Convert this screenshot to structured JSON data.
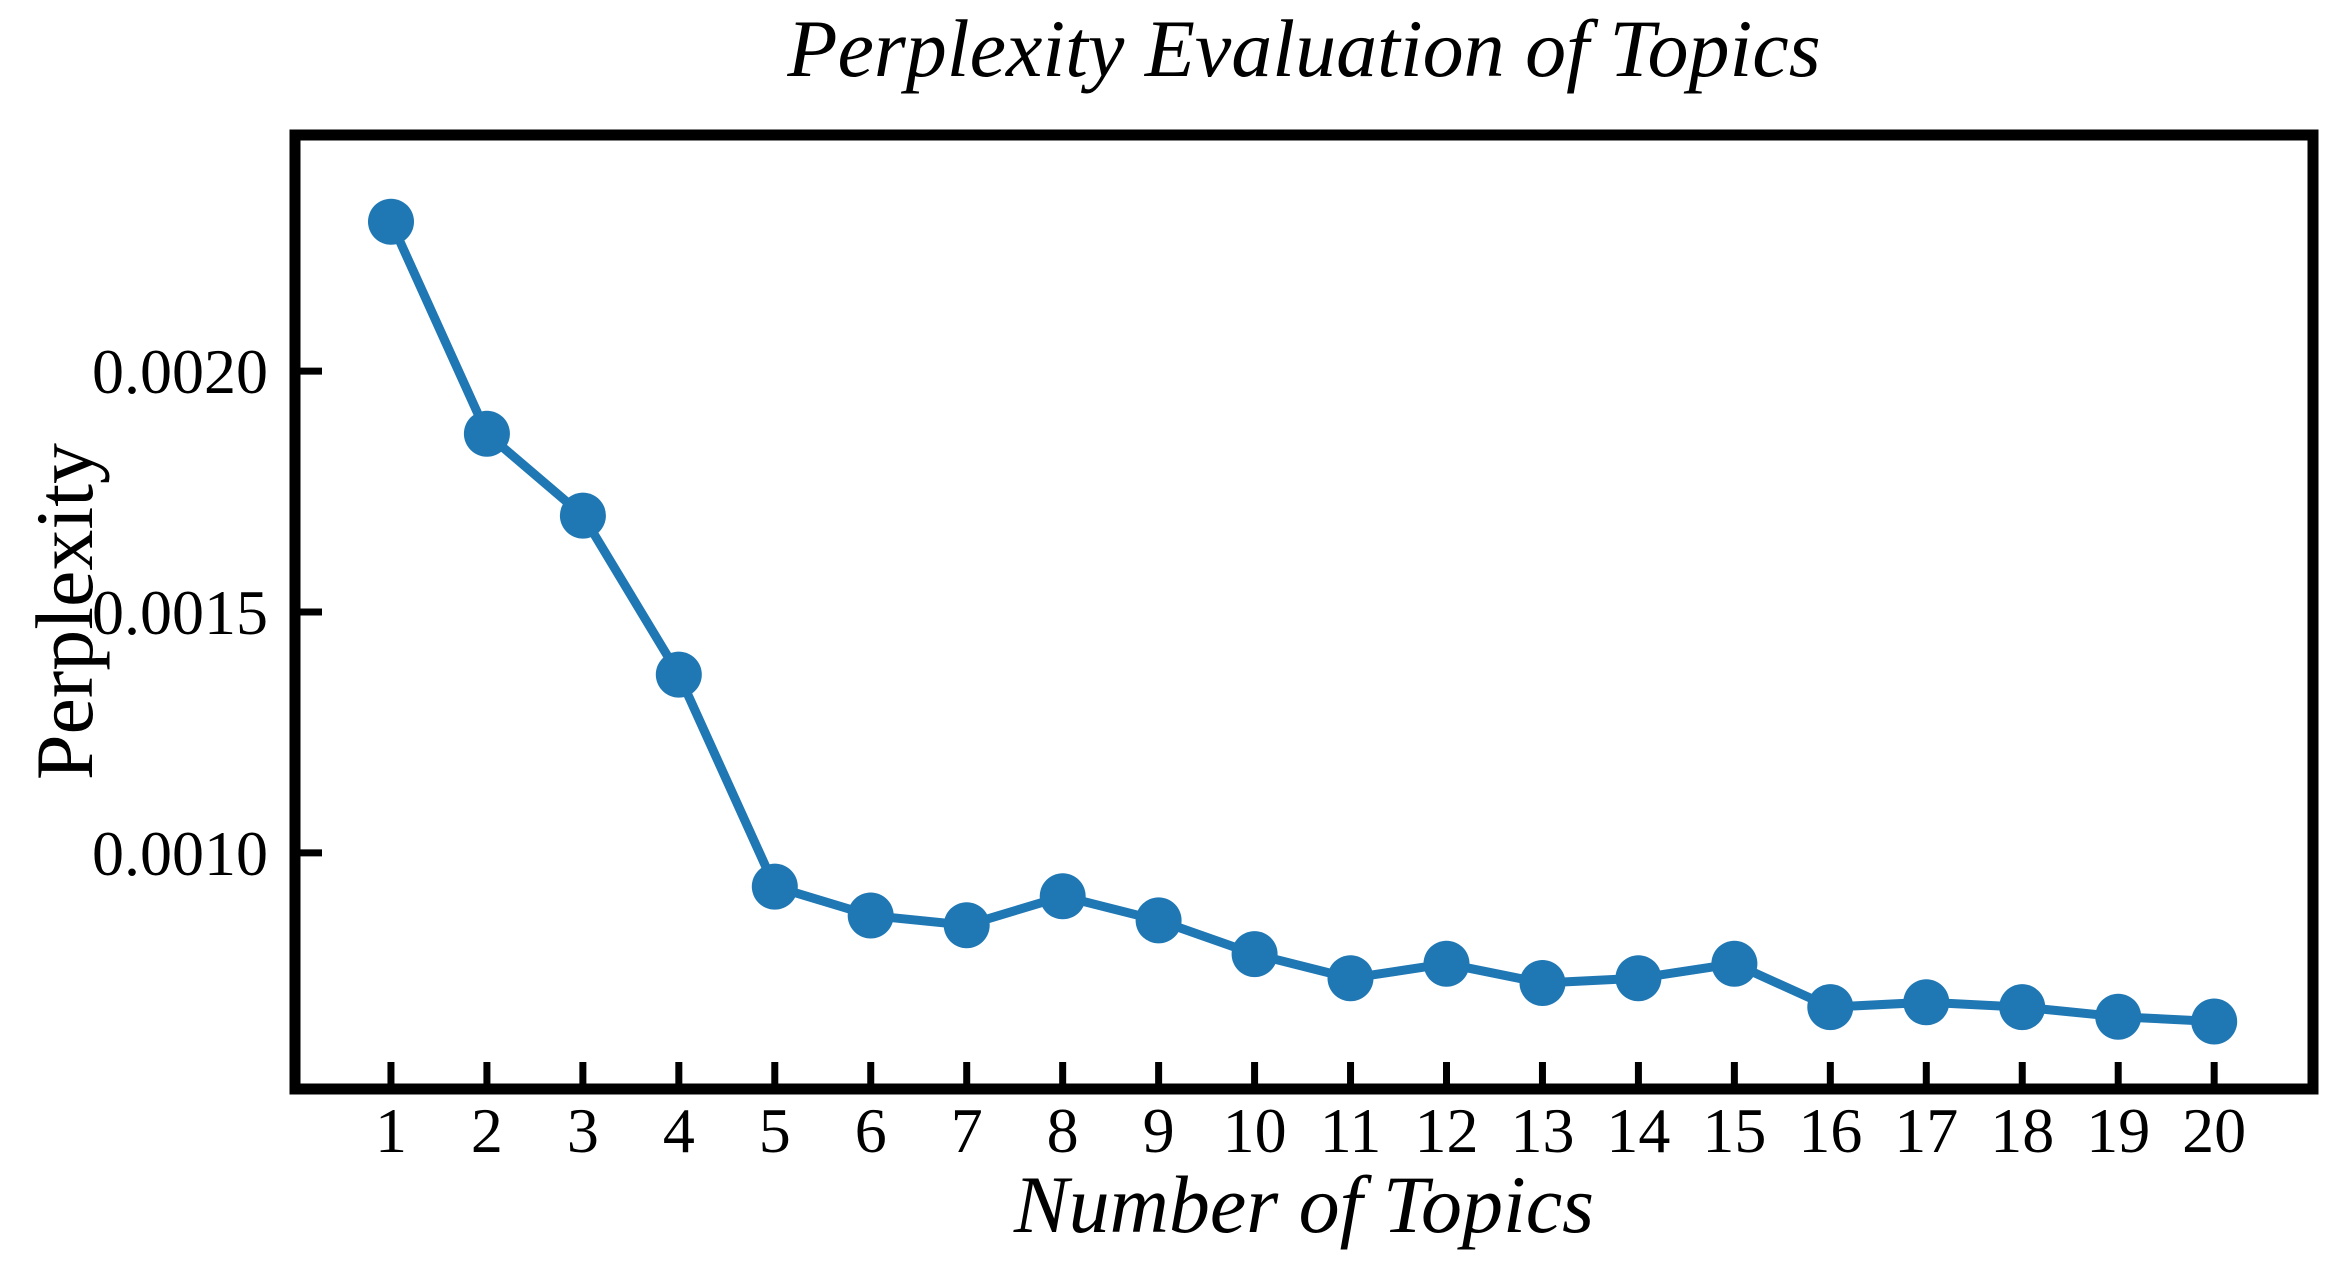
{
  "page": {
    "background_color": "#ffffff"
  },
  "chart_data": {
    "type": "line",
    "title": "Perplexity Evaluation of Topics",
    "xlabel": "Number of Topics",
    "ylabel": "Perplexity",
    "x": [
      1,
      2,
      3,
      4,
      5,
      6,
      7,
      8,
      9,
      10,
      11,
      12,
      13,
      14,
      15,
      16,
      17,
      18,
      19,
      20
    ],
    "series": [
      {
        "name": "Perplexity",
        "values": [
          0.00231,
          0.00187,
          0.0017,
          0.00137,
          0.00093,
          0.00087,
          0.00085,
          0.00091,
          0.00086,
          0.00079,
          0.00074,
          0.00077,
          0.00073,
          0.00074,
          0.00077,
          0.00068,
          0.00069,
          0.00068,
          0.00066,
          0.00065
        ]
      }
    ],
    "xtick_labels": [
      "1",
      "2",
      "3",
      "4",
      "5",
      "6",
      "7",
      "8",
      "9",
      "10",
      "11",
      "12",
      "13",
      "14",
      "15",
      "16",
      "17",
      "18",
      "19",
      "20"
    ],
    "ytick_values": [
      0.001,
      0.0015,
      0.002
    ],
    "ytick_labels": [
      "0.0010",
      "0.0015",
      "0.0020"
    ],
    "xlim": [
      0,
      21.03
    ],
    "ylim": [
      0.00051,
      0.00249
    ],
    "grid": false,
    "legend_position": "none",
    "marker": "circle",
    "line_color": "#1f77b4",
    "marker_color": "#1f77b4",
    "axis_color": "#000000",
    "tick_direction": "in"
  }
}
